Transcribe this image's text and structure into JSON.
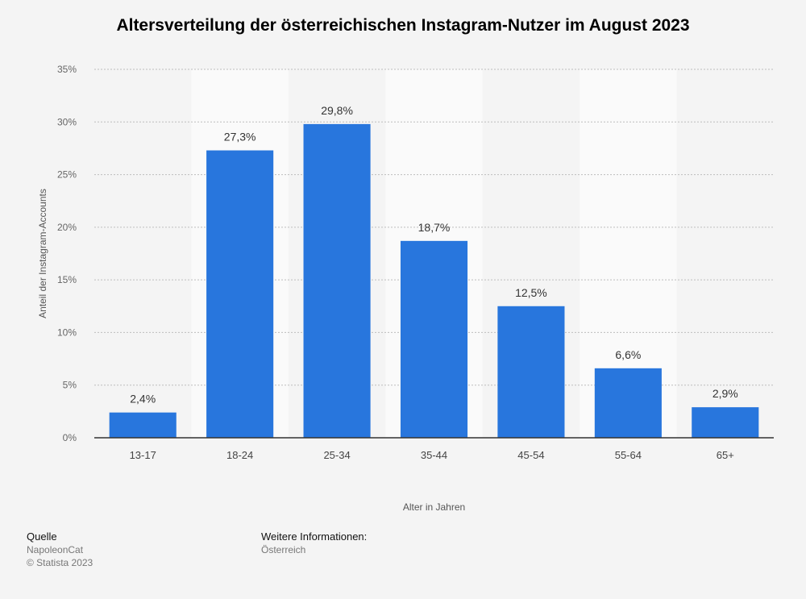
{
  "chart_data": {
    "type": "bar",
    "title": "Altersverteilung der österreichischen Instagram-Nutzer im August 2023",
    "xlabel": "Alter in Jahren",
    "ylabel": "Anteil der Instagram-Accounts",
    "categories": [
      "13-17",
      "18-24",
      "25-34",
      "35-44",
      "45-54",
      "55-64",
      "65+"
    ],
    "values": [
      2.4,
      27.3,
      29.8,
      18.7,
      12.5,
      6.6,
      2.9
    ],
    "value_labels": [
      "2,4%",
      "27,3%",
      "29,8%",
      "18,7%",
      "12,5%",
      "6,6%",
      "2,9%"
    ],
    "ylim": [
      0,
      35
    ],
    "yticks": [
      0,
      5,
      10,
      15,
      20,
      25,
      30,
      35
    ],
    "ytick_labels": [
      "0%",
      "5%",
      "10%",
      "15%",
      "20%",
      "25%",
      "30%",
      "35%"
    ],
    "grid": true,
    "bar_color": "#2876dd"
  },
  "footer": {
    "source_heading": "Quelle",
    "source_name": "NapoleonCat",
    "copyright": "© Statista 2023",
    "info_heading": "Weitere Informationen:",
    "info_text": "Österreich"
  }
}
